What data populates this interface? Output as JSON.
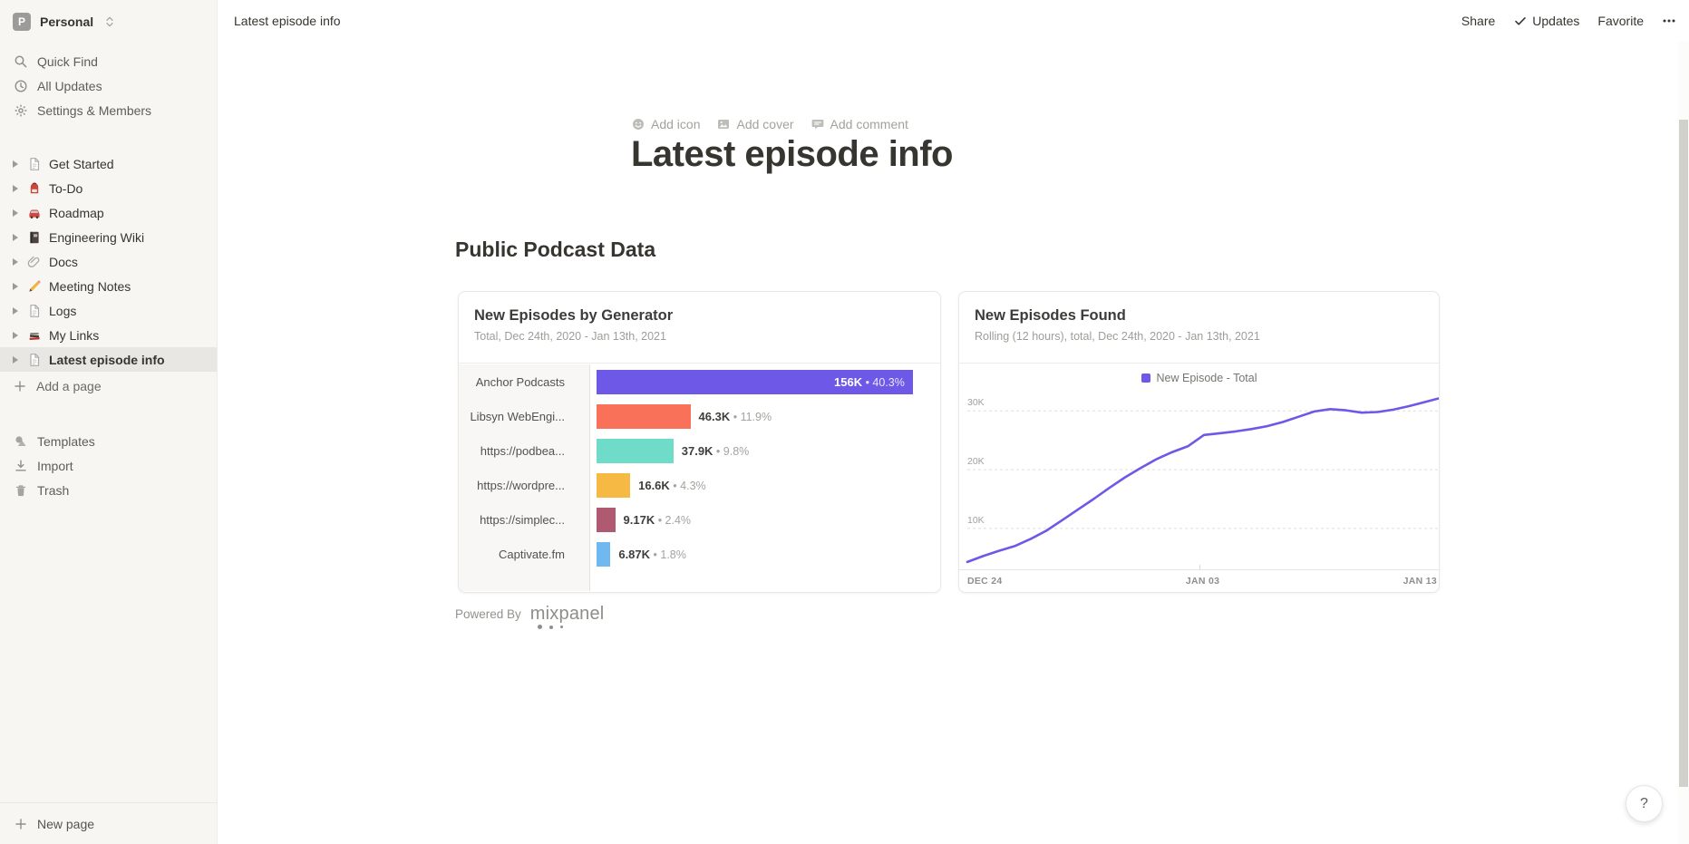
{
  "colors": {
    "accent_purple": "#6E58E8",
    "sidebar_bg": "#F7F6F3",
    "selected_item_bg": "#E8E7E3"
  },
  "sidebar": {
    "workspace": {
      "name": "Personal",
      "avatar_letter": "P"
    },
    "top_items": [
      {
        "label": "Quick Find",
        "icon": "search-icon"
      },
      {
        "label": "All Updates",
        "icon": "clock-icon"
      },
      {
        "label": "Settings & Members",
        "icon": "gear-icon"
      }
    ],
    "pages": [
      {
        "label": "Get Started",
        "icon": "page-icon"
      },
      {
        "label": "To-Do",
        "icon": "backpack-icon"
      },
      {
        "label": "Roadmap",
        "icon": "car-icon"
      },
      {
        "label": "Engineering Wiki",
        "icon": "notebook-icon"
      },
      {
        "label": "Docs",
        "icon": "paperclip-icon"
      },
      {
        "label": "Meeting Notes",
        "icon": "pencil-icon"
      },
      {
        "label": "Logs",
        "icon": "page-icon"
      },
      {
        "label": "My Links",
        "icon": "books-icon"
      },
      {
        "label": "Latest episode info",
        "icon": "page-icon",
        "selected": true
      }
    ],
    "add_page_label": "Add a page",
    "footer_items": [
      {
        "label": "Templates",
        "icon": "template-icon"
      },
      {
        "label": "Import",
        "icon": "import-icon"
      },
      {
        "label": "Trash",
        "icon": "trash-icon"
      }
    ],
    "new_page_label": "New page"
  },
  "topbar": {
    "breadcrumb": "Latest episode info",
    "actions": [
      {
        "label": "Share",
        "name": "share-button"
      },
      {
        "label": "Updates",
        "icon": "check-icon",
        "name": "updates-button"
      },
      {
        "label": "Favorite",
        "name": "favorite-button"
      },
      {
        "icon": "ellipsis-icon",
        "name": "more-button"
      }
    ]
  },
  "page": {
    "controls": [
      {
        "label": "Add icon",
        "icon": "emoji-face-icon"
      },
      {
        "label": "Add cover",
        "icon": "image-icon"
      },
      {
        "label": "Add comment",
        "icon": "comment-icon"
      }
    ],
    "title": "Latest episode info",
    "section_heading": "Public Podcast Data",
    "powered_by": "Powered By",
    "brand": "mixpanel"
  },
  "help_button": "?",
  "chart_data": [
    {
      "type": "bar",
      "orientation": "horizontal",
      "title": "New Episodes by Generator",
      "subtitle": "Total, Dec 24th, 2020 - Jan 13th, 2021",
      "categories": [
        "Anchor Podcasts",
        "Libsyn WebEngi...",
        "https://podbea...",
        "https://wordpre...",
        "https://simplec...",
        "Captivate.fm"
      ],
      "values": [
        156000,
        46300,
        37900,
        16600,
        9170,
        6870
      ],
      "value_labels": [
        "156K",
        "46.3K",
        "37.9K",
        "16.6K",
        "9.17K",
        "6.87K"
      ],
      "percent_labels": [
        "40.3%",
        "11.9%",
        "9.8%",
        "4.3%",
        "2.4%",
        "1.8%"
      ],
      "separator": "•",
      "colors": [
        "#6E58E8",
        "#F97158",
        "#6EDCC8",
        "#F6B943",
        "#B05A72",
        "#70B8F0"
      ],
      "xlim": [
        0,
        165000
      ],
      "grid": false
    },
    {
      "type": "line",
      "title": "New Episodes Found",
      "subtitle": "Rolling (12 hours), total, Dec 24th, 2020 - Jan 13th, 2021",
      "legend": [
        {
          "label": "New Episode - Total",
          "color": "#6E58E8"
        }
      ],
      "legend_position": "top-center",
      "x_tick_labels": [
        "DEC 24",
        "JAN 03",
        "JAN 13"
      ],
      "y_tick_labels": [
        "10K",
        "20K",
        "30K"
      ],
      "y_gridline_values": [
        10000,
        20000,
        30000
      ],
      "ylim": [
        2900,
        32500
      ],
      "grid": "dashed-horizontal",
      "line_color": "#6E58E8",
      "values": [
        4300,
        5300,
        6200,
        7000,
        8200,
        9600,
        11400,
        13200,
        15000,
        16900,
        18700,
        20300,
        21800,
        23000,
        24000,
        25900,
        26200,
        26500,
        26900,
        27400,
        28100,
        29000,
        29900,
        30300,
        30100,
        29700,
        29800,
        30200,
        30800,
        31500,
        32200
      ]
    }
  ]
}
